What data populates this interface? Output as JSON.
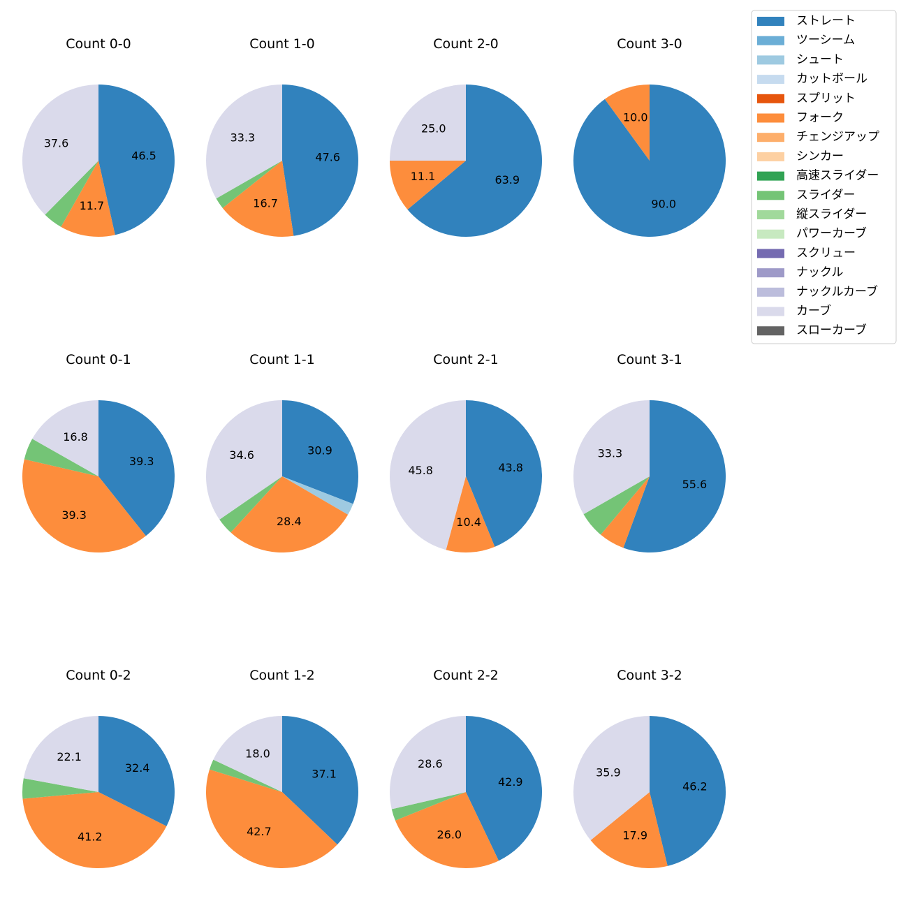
{
  "chart_data": {
    "type": "pie",
    "legend": [
      {
        "label": "ストレート",
        "color": "#3182bd"
      },
      {
        "label": "ツーシーム",
        "color": "#6baed6"
      },
      {
        "label": "シュート",
        "color": "#9ecae1"
      },
      {
        "label": "カットボール",
        "color": "#c6dbef"
      },
      {
        "label": "スプリット",
        "color": "#e6550d"
      },
      {
        "label": "フォーク",
        "color": "#fd8d3c"
      },
      {
        "label": "チェンジアップ",
        "color": "#fdae6b"
      },
      {
        "label": "シンカー",
        "color": "#fdd0a2"
      },
      {
        "label": "高速スライダー",
        "color": "#31a354"
      },
      {
        "label": "スライダー",
        "color": "#74c476"
      },
      {
        "label": "縦スライダー",
        "color": "#a1d99b"
      },
      {
        "label": "パワーカーブ",
        "color": "#c7e9c0"
      },
      {
        "label": "スクリュー",
        "color": "#756bb1"
      },
      {
        "label": "ナックル",
        "color": "#9e9ac8"
      },
      {
        "label": "ナックルカーブ",
        "color": "#bcbddc"
      },
      {
        "label": "カーブ",
        "color": "#dadaeb"
      },
      {
        "label": "スローカーブ",
        "color": "#636363"
      }
    ],
    "pies": [
      {
        "title": "Count 0-0",
        "slices": [
          {
            "pitch": "ストレート",
            "value": 46.5,
            "label": "46.5"
          },
          {
            "pitch": "フォーク",
            "value": 11.7,
            "label": "11.7"
          },
          {
            "pitch": "スライダー",
            "value": 4.2,
            "label": ""
          },
          {
            "pitch": "カーブ",
            "value": 37.6,
            "label": "37.6"
          }
        ]
      },
      {
        "title": "Count 1-0",
        "slices": [
          {
            "pitch": "ストレート",
            "value": 47.6,
            "label": "47.6"
          },
          {
            "pitch": "フォーク",
            "value": 16.7,
            "label": "16.7"
          },
          {
            "pitch": "スライダー",
            "value": 2.4,
            "label": ""
          },
          {
            "pitch": "カーブ",
            "value": 33.3,
            "label": "33.3"
          }
        ]
      },
      {
        "title": "Count 2-0",
        "slices": [
          {
            "pitch": "ストレート",
            "value": 63.9,
            "label": "63.9"
          },
          {
            "pitch": "フォーク",
            "value": 11.1,
            "label": "11.1"
          },
          {
            "pitch": "カーブ",
            "value": 25.0,
            "label": "25.0"
          }
        ]
      },
      {
        "title": "Count 3-0",
        "slices": [
          {
            "pitch": "ストレート",
            "value": 90.0,
            "label": "90.0"
          },
          {
            "pitch": "フォーク",
            "value": 10.0,
            "label": "10.0"
          }
        ]
      },
      {
        "title": "Count 0-1",
        "slices": [
          {
            "pitch": "ストレート",
            "value": 39.3,
            "label": "39.3"
          },
          {
            "pitch": "フォーク",
            "value": 39.3,
            "label": "39.3"
          },
          {
            "pitch": "スライダー",
            "value": 4.6,
            "label": ""
          },
          {
            "pitch": "カーブ",
            "value": 16.8,
            "label": "16.8"
          }
        ]
      },
      {
        "title": "Count 1-1",
        "slices": [
          {
            "pitch": "ストレート",
            "value": 30.9,
            "label": "30.9"
          },
          {
            "pitch": "シュート",
            "value": 2.5,
            "label": ""
          },
          {
            "pitch": "フォーク",
            "value": 28.4,
            "label": "28.4"
          },
          {
            "pitch": "スライダー",
            "value": 3.6,
            "label": ""
          },
          {
            "pitch": "カーブ",
            "value": 34.6,
            "label": "34.6"
          }
        ]
      },
      {
        "title": "Count 2-1",
        "slices": [
          {
            "pitch": "ストレート",
            "value": 43.8,
            "label": "43.8"
          },
          {
            "pitch": "フォーク",
            "value": 10.4,
            "label": "10.4"
          },
          {
            "pitch": "カーブ",
            "value": 45.8,
            "label": "45.8"
          }
        ]
      },
      {
        "title": "Count 3-1",
        "slices": [
          {
            "pitch": "ストレート",
            "value": 55.6,
            "label": "55.6"
          },
          {
            "pitch": "フォーク",
            "value": 5.5,
            "label": ""
          },
          {
            "pitch": "スライダー",
            "value": 5.6,
            "label": ""
          },
          {
            "pitch": "カーブ",
            "value": 33.3,
            "label": "33.3"
          }
        ]
      },
      {
        "title": "Count 0-2",
        "slices": [
          {
            "pitch": "ストレート",
            "value": 32.4,
            "label": "32.4"
          },
          {
            "pitch": "フォーク",
            "value": 41.2,
            "label": "41.2"
          },
          {
            "pitch": "スライダー",
            "value": 4.3,
            "label": ""
          },
          {
            "pitch": "カーブ",
            "value": 22.1,
            "label": "22.1"
          }
        ]
      },
      {
        "title": "Count 1-2",
        "slices": [
          {
            "pitch": "ストレート",
            "value": 37.1,
            "label": "37.1"
          },
          {
            "pitch": "フォーク",
            "value": 42.7,
            "label": "42.7"
          },
          {
            "pitch": "スライダー",
            "value": 2.2,
            "label": ""
          },
          {
            "pitch": "カーブ",
            "value": 18.0,
            "label": "18.0"
          }
        ]
      },
      {
        "title": "Count 2-2",
        "slices": [
          {
            "pitch": "ストレート",
            "value": 42.9,
            "label": "42.9"
          },
          {
            "pitch": "フォーク",
            "value": 26.0,
            "label": "26.0"
          },
          {
            "pitch": "スライダー",
            "value": 2.5,
            "label": ""
          },
          {
            "pitch": "カーブ",
            "value": 28.6,
            "label": "28.6"
          }
        ]
      },
      {
        "title": "Count 3-2",
        "slices": [
          {
            "pitch": "ストレート",
            "value": 46.2,
            "label": "46.2"
          },
          {
            "pitch": "フォーク",
            "value": 17.9,
            "label": "17.9"
          },
          {
            "pitch": "カーブ",
            "value": 35.9,
            "label": "35.9"
          }
        ]
      }
    ]
  }
}
